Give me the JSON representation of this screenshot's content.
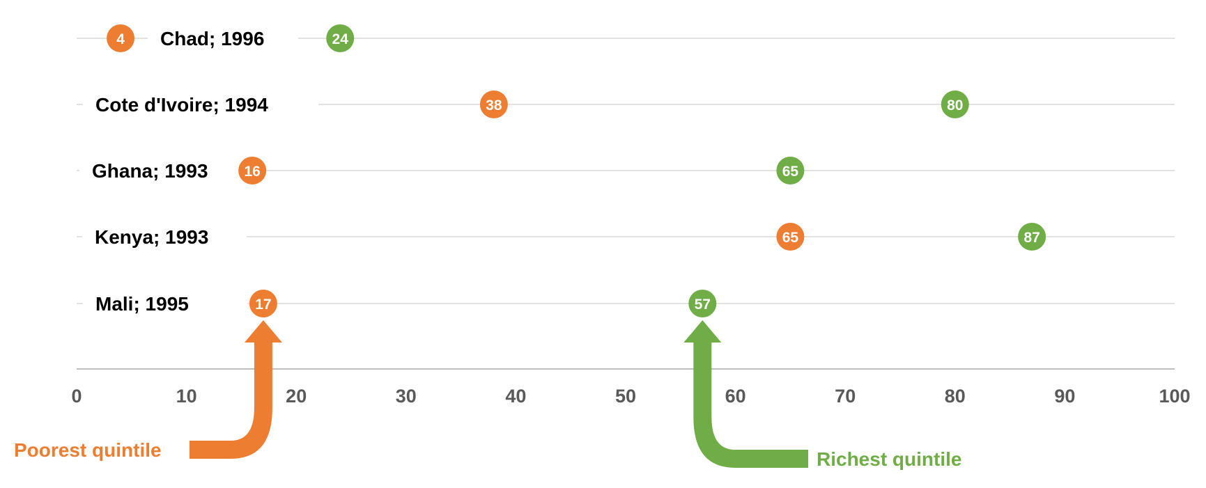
{
  "chart_data": {
    "type": "dot",
    "xlim": [
      0,
      100
    ],
    "x_ticks": [
      "0",
      "10",
      "20",
      "30",
      "40",
      "50",
      "60",
      "70",
      "80",
      "90",
      "100"
    ],
    "grid": true,
    "rows": [
      {
        "label": "Chad; 1996",
        "poorest": 4,
        "richest": 24
      },
      {
        "label": "Cote d'Ivoire; 1994",
        "poorest": 38,
        "richest": 80
      },
      {
        "label": "Ghana; 1993",
        "poorest": 16,
        "richest": 65
      },
      {
        "label": "Kenya; 1993",
        "poorest": 65,
        "richest": 87
      },
      {
        "label": "Mali; 1995",
        "poorest": 17,
        "richest": 57
      }
    ],
    "series": [
      {
        "name": "Poorest quintile",
        "key": "poorest",
        "color": "#ED7D31"
      },
      {
        "name": "Richest quintile",
        "key": "richest",
        "color": "#70AD47"
      }
    ],
    "annotations": {
      "poorest": {
        "text": "Poorest quintile",
        "points_to_row": 4,
        "color": "#ED7D31"
      },
      "richest": {
        "text": "Richest quintile",
        "points_to_row": 4,
        "color": "#70AD47"
      }
    },
    "colors": {
      "grid": "#D9D9D9",
      "axis_line": "#BFBFBF",
      "tick_text": "#595959",
      "row_label": "#000000",
      "marker_text": "#FFFFFF"
    }
  }
}
